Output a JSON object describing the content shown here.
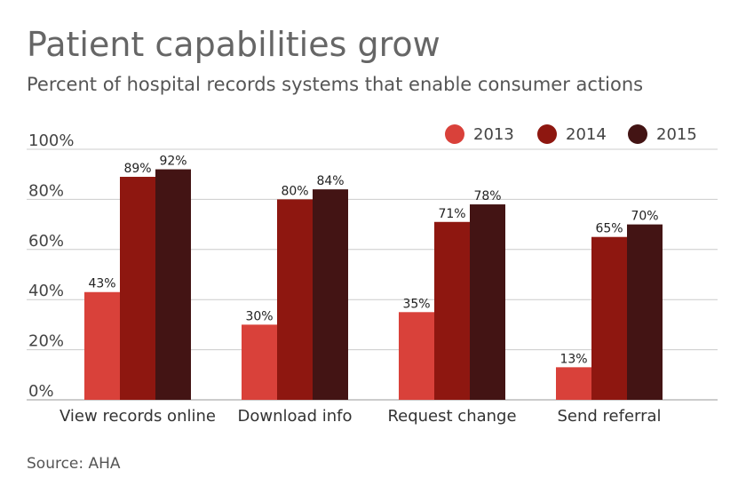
{
  "chart_data": {
    "type": "bar",
    "title": "Patient capabilities grow",
    "subtitle": "Percent of hospital records systems that enable consumer actions",
    "source": "Source: AHA",
    "categories": [
      "View records online",
      "Download info",
      "Request change",
      "Send referral"
    ],
    "series": [
      {
        "name": "2013",
        "color": "#d9413a",
        "values": [
          43,
          30,
          35,
          13
        ]
      },
      {
        "name": "2014",
        "color": "#8e1710",
        "values": [
          89,
          80,
          71,
          65
        ]
      },
      {
        "name": "2015",
        "color": "#431414",
        "values": [
          92,
          84,
          78,
          70
        ]
      }
    ],
    "value_suffix": "%",
    "y_ticks": [
      "0%",
      "20%",
      "40%",
      "60%",
      "80%",
      "100%"
    ],
    "y_tick_values": [
      0,
      20,
      40,
      60,
      80,
      100
    ],
    "ylim": [
      0,
      100
    ],
    "grid": true,
    "legend_position": "top-right",
    "xlabel": "",
    "ylabel": ""
  }
}
